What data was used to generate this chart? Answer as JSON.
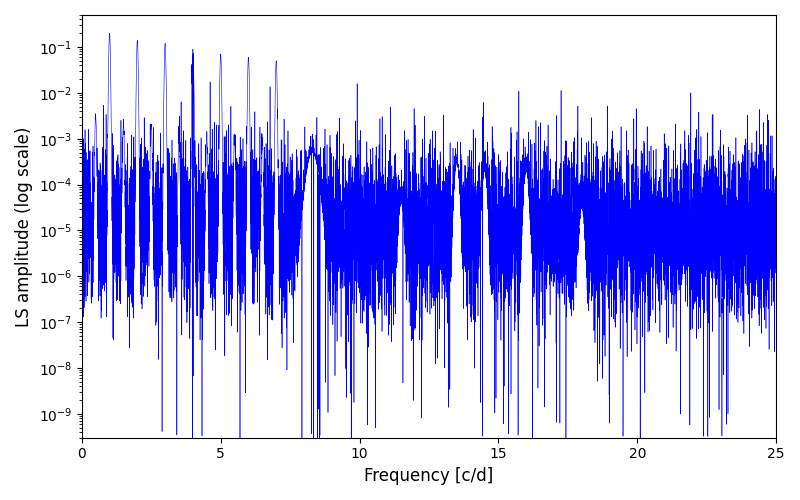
{
  "title": "",
  "xlabel": "Frequency [c/d]",
  "ylabel": "LS amplitude (log scale)",
  "xlim": [
    0,
    25
  ],
  "ylim": [
    3e-10,
    0.5
  ],
  "line_color": "#0000ff",
  "line_width": 0.4,
  "figsize": [
    8.0,
    5.0
  ],
  "dpi": 100,
  "freq_max": 25.0,
  "n_points": 10000,
  "seed": 7
}
